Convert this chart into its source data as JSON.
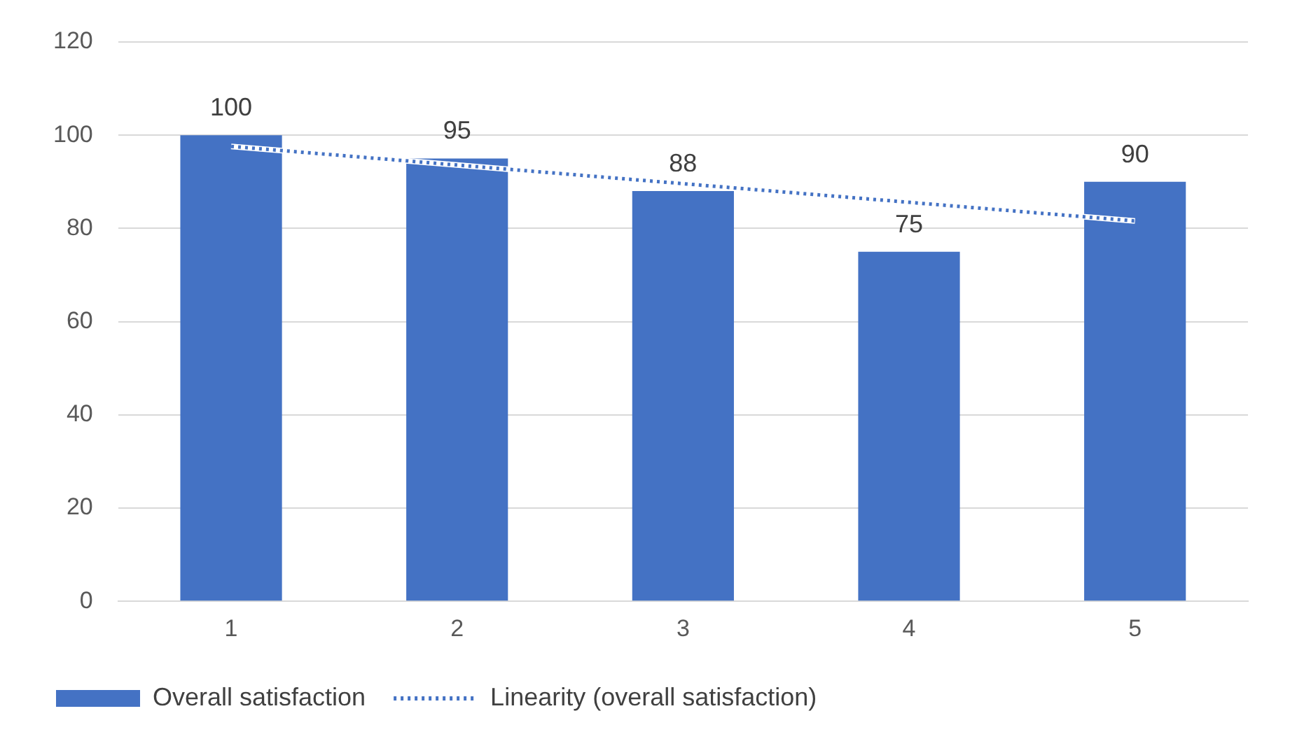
{
  "chart_data": {
    "type": "bar",
    "categories": [
      "1",
      "2",
      "3",
      "4",
      "5"
    ],
    "series": [
      {
        "name": "Overall satisfaction",
        "type": "bar",
        "color": "#4472c4",
        "values": [
          100,
          95,
          88,
          75,
          90
        ],
        "value_labels": [
          "100",
          "95",
          "88",
          "75",
          "90"
        ]
      },
      {
        "name": "Linearity (overall satisfaction)",
        "type": "line",
        "color": "#4472c4",
        "line_style": "dotted",
        "marker": "none",
        "values": [
          97.6,
          93.6,
          89.6,
          85.6,
          81.6
        ]
      }
    ],
    "ylim": [
      0,
      120
    ],
    "yticks": [
      0,
      20,
      40,
      60,
      80,
      100,
      120
    ],
    "grid": "y",
    "legend": "bottom"
  }
}
